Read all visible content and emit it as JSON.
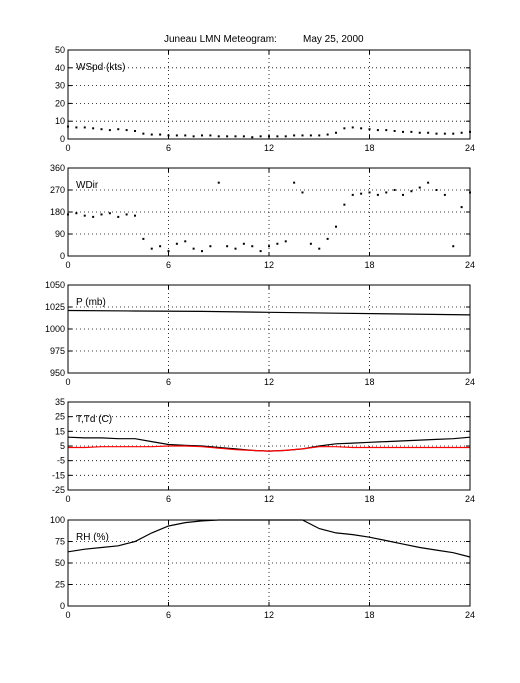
{
  "title": {
    "station": "Juneau LMN Meteogram:",
    "date": "May 25, 2000"
  },
  "chart_data": [
    {
      "type": "scatter",
      "label": "WSpd (kts)",
      "xlim": [
        0,
        24
      ],
      "xticks": [
        0,
        6,
        12,
        18,
        24
      ],
      "ylim": [
        0,
        50
      ],
      "yticks": [
        0,
        10,
        20,
        30,
        40,
        50
      ],
      "grid": true,
      "series": [
        {
          "color": "#000000",
          "x": [
            0,
            0.5,
            1,
            1.5,
            2,
            2.5,
            3,
            3.5,
            4,
            4.5,
            5,
            5.5,
            6,
            6.5,
            7,
            7.5,
            8,
            8.5,
            9,
            9.5,
            10,
            10.5,
            11,
            11.5,
            12,
            12.5,
            13,
            13.5,
            14,
            14.5,
            15,
            15.5,
            16,
            16.5,
            17,
            17.5,
            18,
            18.5,
            19,
            19.5,
            20,
            20.5,
            21,
            21.5,
            22,
            22.5,
            23,
            23.5,
            24
          ],
          "y": [
            7,
            6.5,
            6.5,
            6,
            5.5,
            5,
            5.5,
            5,
            4.5,
            3,
            2.5,
            2.5,
            2,
            2,
            2,
            1.5,
            2,
            2,
            1.5,
            1.5,
            1.5,
            1.5,
            1,
            1.5,
            1.5,
            1.5,
            1.5,
            2,
            2,
            2,
            2,
            2.5,
            3.5,
            6,
            6.5,
            6,
            5.5,
            5,
            5,
            4.5,
            4,
            4,
            3.5,
            3.5,
            3,
            3,
            3,
            3.5,
            4
          ]
        }
      ]
    },
    {
      "type": "scatter",
      "label": "WDir",
      "xlim": [
        0,
        24
      ],
      "xticks": [
        0,
        6,
        12,
        18,
        24
      ],
      "ylim": [
        0,
        360
      ],
      "yticks": [
        0,
        90,
        180,
        270,
        360
      ],
      "grid": true,
      "series": [
        {
          "color": "#000000",
          "x": [
            0,
            0.5,
            1,
            1.5,
            2,
            2.5,
            3,
            3.5,
            4,
            4.5,
            5,
            5.5,
            6,
            6.5,
            7,
            7.5,
            8,
            8.5,
            9,
            9.5,
            10,
            10.5,
            11,
            11.5,
            12,
            12.5,
            13,
            13.5,
            14,
            14.5,
            15,
            15.5,
            16,
            16.5,
            17,
            17.5,
            18,
            18.5,
            19,
            19.5,
            20,
            20.5,
            21,
            21.5,
            22,
            22.5,
            23,
            23.5,
            24
          ],
          "y": [
            170,
            175,
            165,
            160,
            170,
            175,
            160,
            170,
            165,
            70,
            30,
            40,
            20,
            50,
            60,
            30,
            20,
            40,
            300,
            40,
            30,
            50,
            40,
            20,
            40,
            50,
            60,
            300,
            260,
            50,
            30,
            70,
            120,
            210,
            250,
            255,
            260,
            250,
            260,
            270,
            250,
            265,
            280,
            300,
            270,
            250,
            40,
            200,
            260
          ]
        }
      ]
    },
    {
      "type": "line",
      "label": "P (mb)",
      "xlim": [
        0,
        24
      ],
      "xticks": [
        0,
        6,
        12,
        18,
        24
      ],
      "ylim": [
        950,
        1050
      ],
      "yticks": [
        950,
        975,
        1000,
        1025,
        1050
      ],
      "grid": true,
      "series": [
        {
          "color": "#000000",
          "x": [
            0,
            4,
            8,
            12,
            16,
            20,
            24
          ],
          "y": [
            1021,
            1020.5,
            1020,
            1019,
            1018,
            1017,
            1016
          ]
        }
      ]
    },
    {
      "type": "line",
      "label": "T,Td (C)",
      "xlim": [
        0,
        24
      ],
      "xticks": [
        0,
        6,
        12,
        18,
        24
      ],
      "ylim": [
        -25,
        35
      ],
      "yticks": [
        -25,
        -15,
        -5,
        5,
        15,
        25,
        35
      ],
      "grid": true,
      "series": [
        {
          "color": "#000000",
          "x": [
            0,
            1,
            2,
            3,
            4,
            5,
            6,
            7,
            8,
            9,
            10,
            11,
            12,
            13,
            14,
            15,
            16,
            17,
            18,
            19,
            20,
            21,
            22,
            23,
            24
          ],
          "y": [
            11,
            10.5,
            10.5,
            10,
            10,
            8,
            6,
            5.5,
            5,
            4,
            3,
            2,
            1.5,
            2,
            3,
            5,
            6.5,
            7,
            7.5,
            8,
            8.5,
            9,
            9.5,
            10,
            11
          ]
        },
        {
          "color": "#ff0000",
          "x": [
            0,
            1,
            2,
            3,
            4,
            5,
            6,
            7,
            8,
            9,
            10,
            11,
            12,
            13,
            14,
            15,
            16,
            17,
            18,
            19,
            20,
            21,
            22,
            23,
            24
          ],
          "y": [
            4,
            4,
            4.5,
            4.5,
            4.5,
            4.5,
            5,
            5,
            4.5,
            3.5,
            2.5,
            2,
            1.5,
            2,
            3,
            4.5,
            4.5,
            4,
            4,
            4,
            4,
            4,
            4,
            4,
            4
          ]
        }
      ]
    },
    {
      "type": "line",
      "label": "RH (%)",
      "xlim": [
        0,
        24
      ],
      "xticks": [
        0,
        6,
        12,
        18,
        24
      ],
      "ylim": [
        0,
        100
      ],
      "yticks": [
        0,
        25,
        50,
        75,
        100
      ],
      "grid": true,
      "series": [
        {
          "color": "#000000",
          "x": [
            0,
            1,
            2,
            3,
            4,
            5,
            6,
            7,
            8,
            9,
            10,
            11,
            12,
            13,
            14,
            15,
            16,
            17,
            18,
            19,
            20,
            21,
            22,
            23,
            24
          ],
          "y": [
            63,
            66,
            68,
            70,
            75,
            85,
            93,
            97,
            99,
            100,
            100,
            100,
            100,
            100,
            100,
            90,
            85,
            83,
            80,
            76,
            72,
            68,
            65,
            62,
            57
          ]
        }
      ]
    }
  ]
}
